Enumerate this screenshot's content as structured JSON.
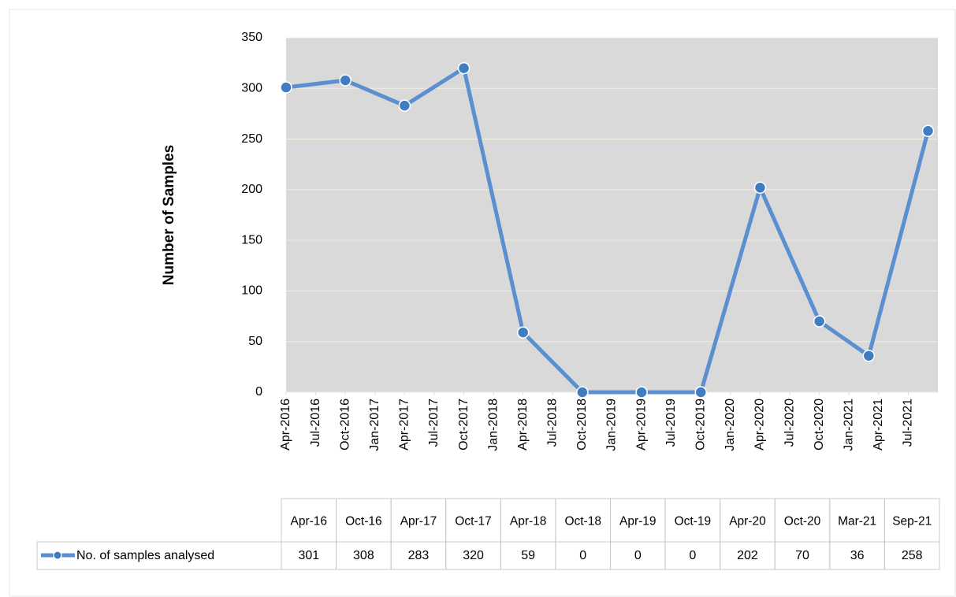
{
  "chart_data": {
    "type": "line",
    "y_label": "Number of Samples",
    "x": [
      "2016-04",
      "2016-10",
      "2017-04",
      "2017-10",
      "2018-04",
      "2018-10",
      "2019-04",
      "2019-10",
      "2020-04",
      "2020-10",
      "2021-03",
      "2021-09"
    ],
    "x_labels": [
      "Apr-16",
      "Oct-16",
      "Apr-17",
      "Oct-17",
      "Apr-18",
      "Oct-18",
      "Apr-19",
      "Oct-19",
      "Apr-20",
      "Oct-20",
      "Mar-21",
      "Sep-21"
    ],
    "series": [
      {
        "name": "No. of samples analysed",
        "color": "#5b8fcf",
        "values": [
          301,
          308,
          283,
          320,
          59,
          0,
          0,
          0,
          202,
          70,
          36,
          258
        ]
      }
    ],
    "xlim": [
      "2016-04",
      "2021-10"
    ],
    "xticks": [
      {
        "value": "2016-04",
        "label": "Apr-2016"
      },
      {
        "value": "2016-07",
        "label": "Jul-2016"
      },
      {
        "value": "2016-10",
        "label": "Oct-2016"
      },
      {
        "value": "2017-01",
        "label": "Jan-2017"
      },
      {
        "value": "2017-04",
        "label": "Apr-2017"
      },
      {
        "value": "2017-07",
        "label": "Jul-2017"
      },
      {
        "value": "2017-10",
        "label": "Oct-2017"
      },
      {
        "value": "2018-01",
        "label": "Jan-2018"
      },
      {
        "value": "2018-04",
        "label": "Apr-2018"
      },
      {
        "value": "2018-07",
        "label": "Jul-2018"
      },
      {
        "value": "2018-10",
        "label": "Oct-2018"
      },
      {
        "value": "2019-01",
        "label": "Jan-2019"
      },
      {
        "value": "2019-04",
        "label": "Apr-2019"
      },
      {
        "value": "2019-07",
        "label": "Jul-2019"
      },
      {
        "value": "2019-10",
        "label": "Oct-2019"
      },
      {
        "value": "2020-01",
        "label": "Jan-2020"
      },
      {
        "value": "2020-04",
        "label": "Apr-2020"
      },
      {
        "value": "2020-07",
        "label": "Jul-2020"
      },
      {
        "value": "2020-10",
        "label": "Oct-2020"
      },
      {
        "value": "2021-01",
        "label": "Jan-2021"
      },
      {
        "value": "2021-04",
        "label": "Apr-2021"
      },
      {
        "value": "2021-07",
        "label": "Jul-2021"
      }
    ],
    "ylim": [
      0,
      350
    ],
    "yticks": [
      0,
      50,
      100,
      150,
      200,
      250,
      300,
      350
    ],
    "grid": true
  }
}
